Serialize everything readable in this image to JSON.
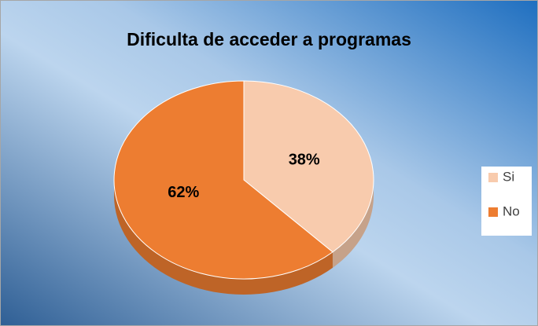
{
  "chart_data": {
    "type": "pie",
    "title": "Dificulta de acceder a programas",
    "categories": [
      "Si",
      "No"
    ],
    "values": [
      38,
      62
    ],
    "value_labels": [
      "38%",
      "62%"
    ],
    "colors": [
      "#f8cbad",
      "#ed7d31"
    ],
    "legend": "right"
  }
}
